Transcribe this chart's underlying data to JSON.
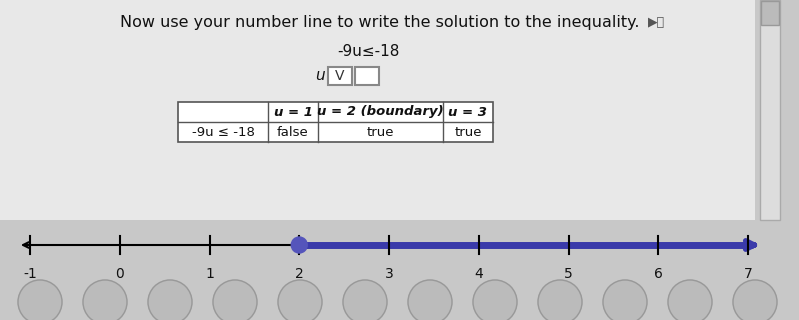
{
  "title": "Now use your number line to write the solution to the inequality.",
  "inequality": "-9u≤-18",
  "answer_label": "u",
  "table_headers": [
    "",
    "u = 1",
    "u = 2 (boundary)",
    "u = 3"
  ],
  "table_row": [
    "-9u ≤ -18",
    "false",
    "true",
    "true"
  ],
  "number_line_ticks": [
    -1,
    0,
    1,
    2,
    3,
    4,
    5,
    6,
    7
  ],
  "boundary_point": 2,
  "line_color": "#3a3aaa",
  "point_color": "#5555bb",
  "bg_color": "#c8c8c8",
  "table_bg": "#ffffff",
  "title_fontsize": 11.5,
  "tick_fontsize": 10,
  "table_fontsize": 9.5,
  "inequality_fontsize": 11
}
